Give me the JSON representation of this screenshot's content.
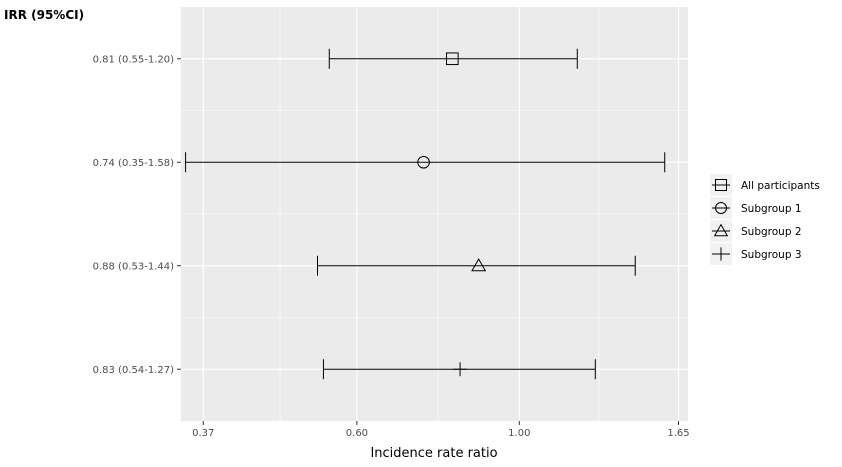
{
  "chart_data": {
    "type": "forest",
    "title": "IRR (95%CI)",
    "xlabel": "Incidence rate ratio",
    "ylabel": "",
    "x_scale": "log",
    "xlim": [
      0.345,
      1.7
    ],
    "x_ticks": [
      0.37,
      0.6,
      1.0,
      1.65
    ],
    "x_tick_labels": [
      "0.37",
      "0.60",
      "1.00",
      "1.65"
    ],
    "grid": true,
    "legend_position": "right",
    "categories": [
      "0.81 (0.55-1.20)",
      "0.74 (0.35-1.58)",
      "0.88 (0.53-1.44)",
      "0.83 (0.54-1.27)"
    ],
    "series": [
      {
        "name": "All participants",
        "marker": "square",
        "estimate": 0.81,
        "lower": 0.55,
        "upper": 1.2
      },
      {
        "name": "Subgroup 1",
        "marker": "circle",
        "estimate": 0.74,
        "lower": 0.35,
        "upper": 1.58
      },
      {
        "name": "Subgroup 2",
        "marker": "triangle",
        "estimate": 0.88,
        "lower": 0.53,
        "upper": 1.44
      },
      {
        "name": "Subgroup 3",
        "marker": "plus",
        "estimate": 0.83,
        "lower": 0.54,
        "upper": 1.27
      }
    ],
    "colors": {
      "panel": "#ebebeb",
      "grid": "#ffffff",
      "ink": "#000000",
      "tick_text": "#4d4d4d"
    }
  }
}
